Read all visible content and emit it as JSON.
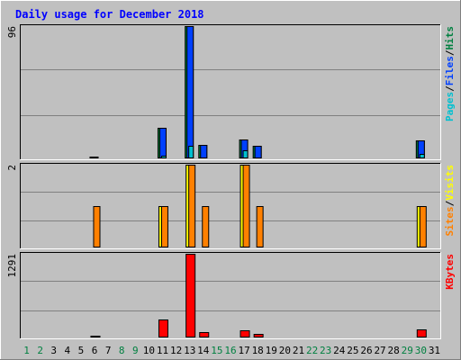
{
  "chart_data": {
    "type": "bar",
    "title": "Daily usage for December 2018",
    "days": [
      "1",
      "2",
      "3",
      "4",
      "5",
      "6",
      "7",
      "8",
      "9",
      "10",
      "11",
      "12",
      "13",
      "14",
      "15",
      "16",
      "17",
      "18",
      "19",
      "20",
      "21",
      "22",
      "23",
      "24",
      "25",
      "26",
      "27",
      "28",
      "29",
      "30",
      "31"
    ],
    "weekend_days": [
      "1",
      "2",
      "8",
      "9",
      "15",
      "16",
      "22",
      "23",
      "29",
      "30"
    ],
    "panels": [
      {
        "id": "hits",
        "ymax": 96,
        "ymax_label": "96",
        "legend": [
          {
            "text": "Pages",
            "color": "#00c0d0"
          },
          {
            "text": "/",
            "color": "#000000"
          },
          {
            "text": "Files",
            "color": "#0040ff"
          },
          {
            "text": "/",
            "color": "#000000"
          },
          {
            "text": "Hits",
            "color": "#008040"
          }
        ],
        "series": [
          {
            "key": "hits",
            "color": "#008040",
            "values": [
              0,
              0,
              0,
              0,
              0,
              1,
              0,
              0,
              0,
              0,
              22,
              0,
              96,
              10,
              0,
              0,
              14,
              9,
              0,
              0,
              0,
              0,
              0,
              0,
              0,
              0,
              0,
              0,
              0,
              13,
              0
            ]
          },
          {
            "key": "files",
            "color": "#0040ff",
            "values": [
              0,
              0,
              0,
              0,
              0,
              1,
              0,
              0,
              0,
              0,
              22,
              0,
              96,
              10,
              0,
              0,
              14,
              9,
              0,
              0,
              0,
              0,
              0,
              0,
              0,
              0,
              0,
              0,
              0,
              13,
              0
            ]
          },
          {
            "key": "pages",
            "color": "#00c0d0",
            "values": [
              0,
              0,
              0,
              0,
              0,
              0,
              0,
              0,
              0,
              0,
              2,
              0,
              9,
              0,
              0,
              0,
              6,
              0,
              0,
              0,
              0,
              0,
              0,
              0,
              0,
              0,
              0,
              0,
              0,
              3,
              0
            ]
          }
        ]
      },
      {
        "id": "visits",
        "ymax": 2,
        "ymax_label": "2",
        "legend": [
          {
            "text": "Sites",
            "color": "#ff8000"
          },
          {
            "text": "/",
            "color": "#000000"
          },
          {
            "text": "Visits",
            "color": "#ffff00"
          }
        ],
        "series": [
          {
            "key": "visits",
            "color": "#ffff00",
            "values": [
              0,
              0,
              0,
              0,
              0,
              0,
              0,
              0,
              0,
              0,
              1,
              0,
              2,
              0,
              0,
              0,
              2,
              0,
              0,
              0,
              0,
              0,
              0,
              0,
              0,
              0,
              0,
              0,
              0,
              1,
              0
            ]
          },
          {
            "key": "sites",
            "color": "#ff8000",
            "values": [
              0,
              0,
              0,
              0,
              0,
              1,
              0,
              0,
              0,
              0,
              1,
              0,
              2,
              1,
              0,
              0,
              2,
              1,
              0,
              0,
              0,
              0,
              0,
              0,
              0,
              0,
              0,
              0,
              0,
              1,
              0
            ]
          }
        ]
      },
      {
        "id": "kbytes",
        "ymax": 1291,
        "ymax_label": "1291",
        "legend": [
          {
            "text": "KBytes",
            "color": "#ff0000"
          }
        ],
        "series": [
          {
            "key": "kbytes",
            "color": "#ff0000",
            "values": [
              0,
              0,
              0,
              0,
              0,
              20,
              0,
              0,
              0,
              0,
              280,
              0,
              1291,
              90,
              0,
              0,
              110,
              60,
              0,
              0,
              0,
              0,
              0,
              0,
              0,
              0,
              0,
              0,
              0,
              120,
              0
            ]
          }
        ]
      }
    ],
    "colors": {
      "background": "#c0c0c0",
      "title": "#0000ff",
      "weekday_label": "#000000",
      "weekend_label": "#008040",
      "gridline": "#808080"
    }
  }
}
